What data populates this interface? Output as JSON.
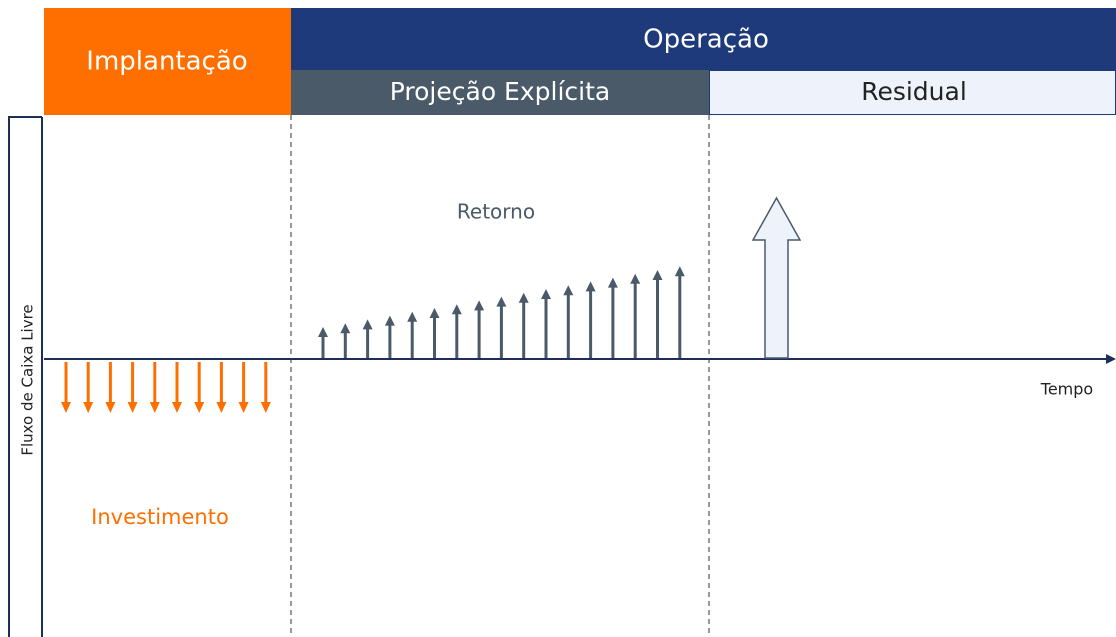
{
  "header": {
    "implantacao": "Implantação",
    "operacao": "Operação",
    "projecao": "Projeção Explícita",
    "residual": "Residual"
  },
  "axis": {
    "y_label": "Fluxo de Caixa Livre",
    "x_label": "Tempo"
  },
  "labels": {
    "retorno": "Retorno",
    "investimento": "Investimento"
  }
}
